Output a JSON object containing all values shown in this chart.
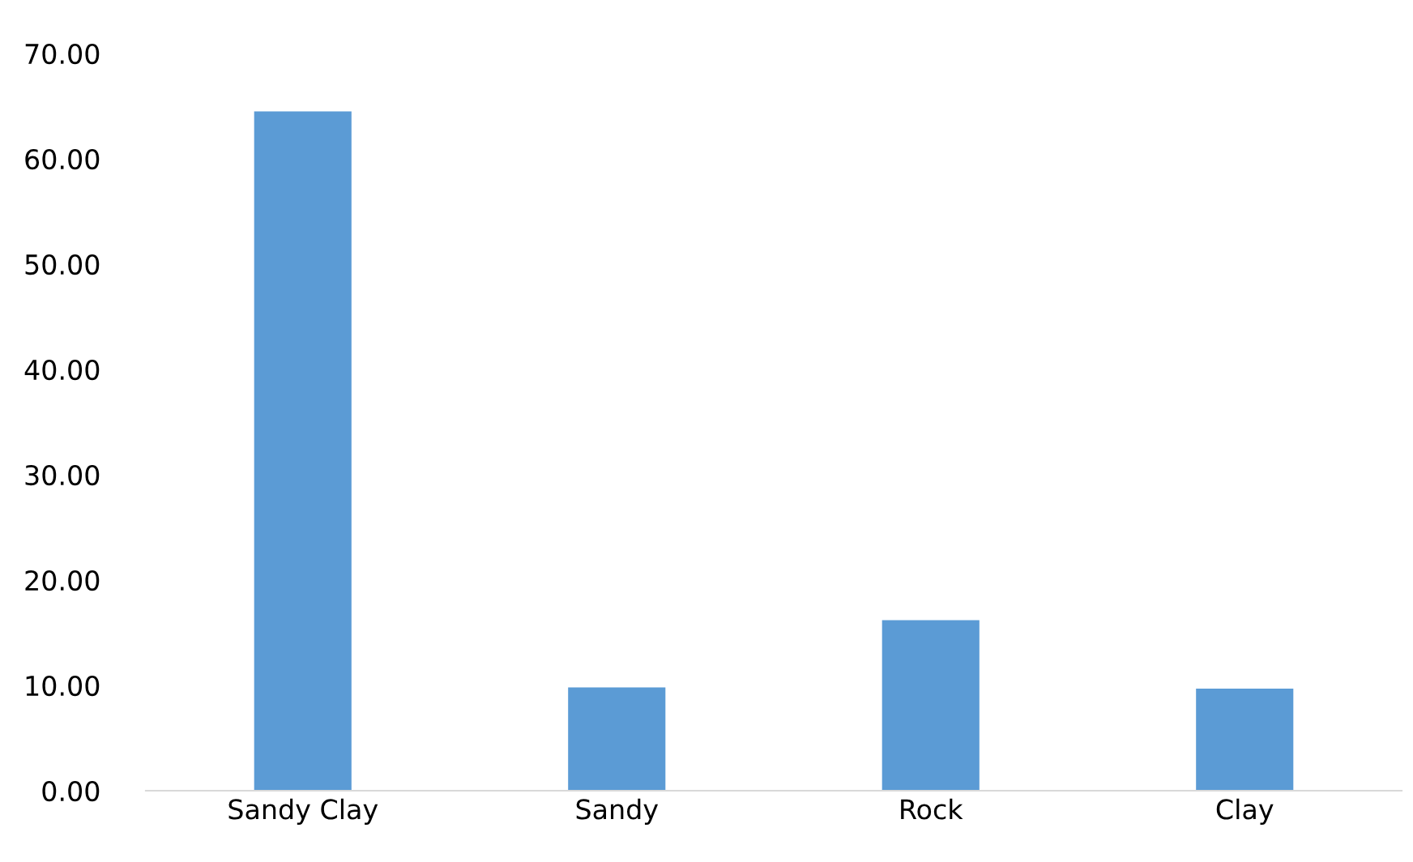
{
  "chart_data": {
    "type": "bar",
    "categories": [
      "Sandy Clay",
      "Sandy",
      "Rock",
      "Clay"
    ],
    "values": [
      64.5,
      9.8,
      16.2,
      9.7
    ],
    "color": "#5b9bd5",
    "ylim": [
      0,
      70
    ],
    "yticks": [
      {
        "value": 0,
        "label": "0.00"
      },
      {
        "value": 10,
        "label": "10.00"
      },
      {
        "value": 20,
        "label": "20.00"
      },
      {
        "value": 30,
        "label": "30.00"
      },
      {
        "value": 40,
        "label": "40.00"
      },
      {
        "value": 50,
        "label": "50.00"
      },
      {
        "value": 60,
        "label": "60.00"
      },
      {
        "value": 70,
        "label": "70.00"
      }
    ],
    "grid": false,
    "legend": false
  }
}
